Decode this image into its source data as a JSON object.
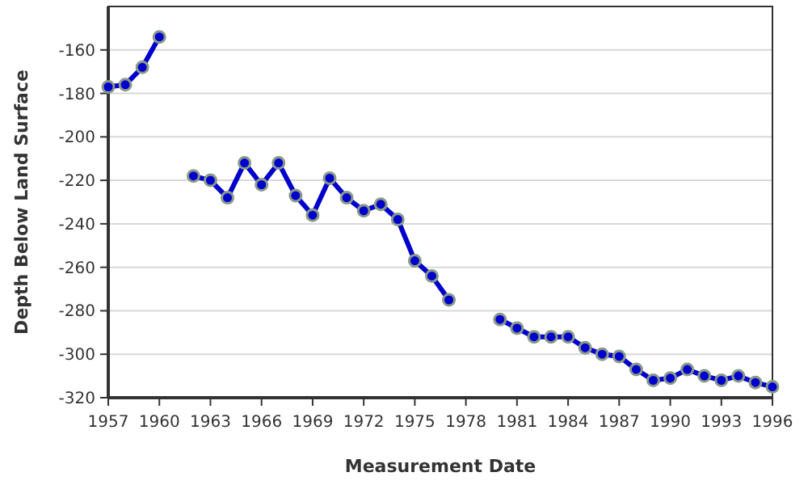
{
  "chart_data": {
    "type": "line",
    "xlabel": "Measurement Date",
    "ylabel": "Depth Below Land Surface",
    "x": [
      1957,
      1958,
      1959,
      1960,
      1961,
      1962,
      1963,
      1964,
      1965,
      1966,
      1967,
      1968,
      1969,
      1970,
      1971,
      1972,
      1973,
      1974,
      1975,
      1976,
      1977,
      1978,
      1979,
      1980,
      1981,
      1982,
      1983,
      1984,
      1985,
      1986,
      1987,
      1988,
      1989,
      1990,
      1991,
      1992,
      1993,
      1994,
      1995,
      1996
    ],
    "series": [
      {
        "color": "#0000cc",
        "values": [
          -177,
          -176,
          -168,
          -154,
          null,
          -218,
          -220,
          -228,
          -212,
          -222,
          -212,
          -227,
          -236,
          -219,
          -228,
          -234,
          -231,
          -238,
          -257,
          -264,
          -275,
          null,
          null,
          -284,
          -288,
          -292,
          -292,
          -292,
          -297,
          -300,
          -301,
          -307,
          -312,
          -311,
          -307,
          -310,
          -312,
          -310,
          -313,
          -315
        ]
      }
    ],
    "xlim": [
      1957,
      1996
    ],
    "xticks": [
      1957,
      1960,
      1963,
      1966,
      1969,
      1972,
      1975,
      1978,
      1981,
      1984,
      1987,
      1990,
      1993,
      1996
    ],
    "ylim": [
      -320,
      -140
    ],
    "yticks": [
      -320,
      -300,
      -280,
      -260,
      -240,
      -220,
      -200,
      -180,
      -160
    ],
    "grid": "y",
    "marker": "circle",
    "line_style": "solid"
  }
}
